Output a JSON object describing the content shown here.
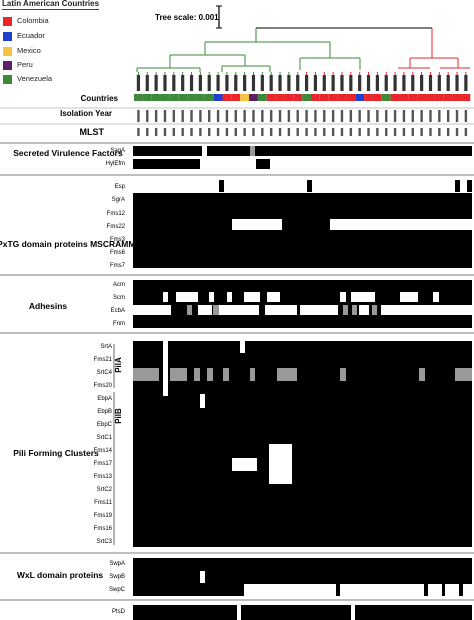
{
  "legend": {
    "title": "Latin American Countries",
    "items": [
      {
        "label": "Colombia",
        "color": "#e8262b"
      },
      {
        "label": "Ecuador",
        "color": "#1f3fd1"
      },
      {
        "label": "Mexico",
        "color": "#f4c542"
      },
      {
        "label": "Peru",
        "color": "#5b1f66"
      },
      {
        "label": "Venezuela",
        "color": "#3e8a3a"
      }
    ]
  },
  "tree_scale_label": "Tree scale: 0.001",
  "row_headers": {
    "countries": "Countries",
    "isolation_year": "Isolation Year",
    "mlst": "MLST"
  },
  "sections": {
    "secreted": "Secreted Virulence Factors",
    "lpxtg": "LPxTG domain proteins MSCRAMMs",
    "adhesins": "Adhesins",
    "pili": "Pili Forming Clusters",
    "wxl": "WxL domain proteins"
  },
  "subgroups": {
    "pila": "PilA",
    "pilb": "PilB"
  },
  "gene_labels": {
    "saga": "SagA",
    "hylefm": "HylEfm",
    "esp": "Esp",
    "sgra": "SgrA",
    "fms12": "Fms12",
    "fms22": "Fms22",
    "fms3": "Fms3",
    "fms6": "Fms6",
    "fms7": "Fms7",
    "acm": "Acm",
    "scm": "Scm",
    "ecba": "EcbA",
    "fnm": "Fnm",
    "srta": "SrtA",
    "fms21": "Fms21",
    "srtc4": "SrtC4",
    "fms20": "Fms20",
    "ebpa": "EbpA",
    "ebpb": "EbpB",
    "ebpc": "EbpC",
    "srtc1": "SrtC1",
    "fms14": "Fms14",
    "fms17": "Fms17",
    "fms13": "Fms13",
    "srtc2": "SrtC2",
    "fms11": "Fms11",
    "fms19": "Fms19",
    "fms16": "Fms16",
    "srtc3": "SrtC3",
    "swpa": "SwpA",
    "swpb": "SwpB",
    "swpc": "SwpC",
    "ptsd": "PtsD"
  },
  "colors": {
    "present": "#000000",
    "partial": "#999999",
    "absent": "#ffffff",
    "colombia_clade": "#e8262b",
    "venezuela_clade": "#3e8a3a"
  }
}
